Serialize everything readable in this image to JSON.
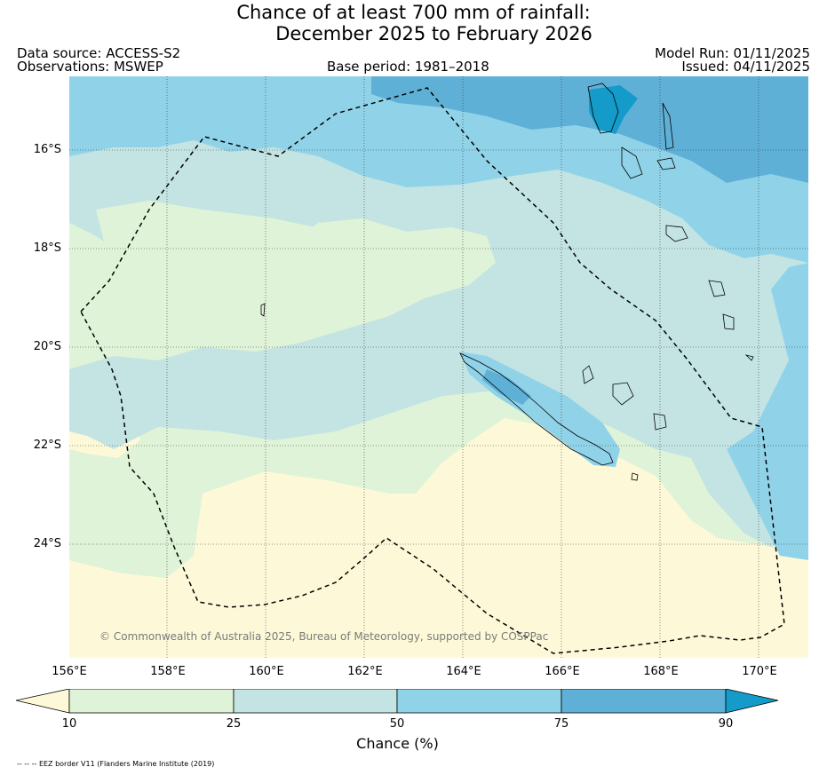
{
  "title": {
    "line1": "Chance of at least 700 mm of rainfall:",
    "line2": "December 2025 to February 2026"
  },
  "meta": {
    "data_source": "Data source: ACCESS-S2",
    "observations": "Observations: MSWEP",
    "base_period": "Base period: 1981–2018",
    "model_run": "Model Run: 01/11/2025",
    "issued": "Issued: 04/11/2025"
  },
  "map": {
    "lon_range": [
      156,
      171
    ],
    "lat_range": [
      -26.2,
      -14.4
    ],
    "lat_ticks": [
      "16°S",
      "18°S",
      "20°S",
      "22°S",
      "24°S"
    ],
    "lon_ticks": [
      "156°E",
      "158°E",
      "160°E",
      "162°E",
      "164°E",
      "166°E",
      "168°E",
      "170°E"
    ],
    "copyright": "© Commonwealth of Australia 2025, Bureau of Meteorology, supported by COSPPac",
    "eez_border_style": "dashed"
  },
  "colorbar": {
    "title": "Chance (%)",
    "tick_labels": [
      "10",
      "25",
      "50",
      "75",
      "90"
    ],
    "colors": {
      "below_10": "#fdf9d8",
      "10_25": "#dff3d8",
      "25_50": "#c3e4e3",
      "50_75": "#90d3e9",
      "75_90": "#5fb0d6",
      "above_90": "#149bc9"
    }
  },
  "footnote": "-- -- -- EEZ border V11 (Flanders Marine Institute (2019)"
}
